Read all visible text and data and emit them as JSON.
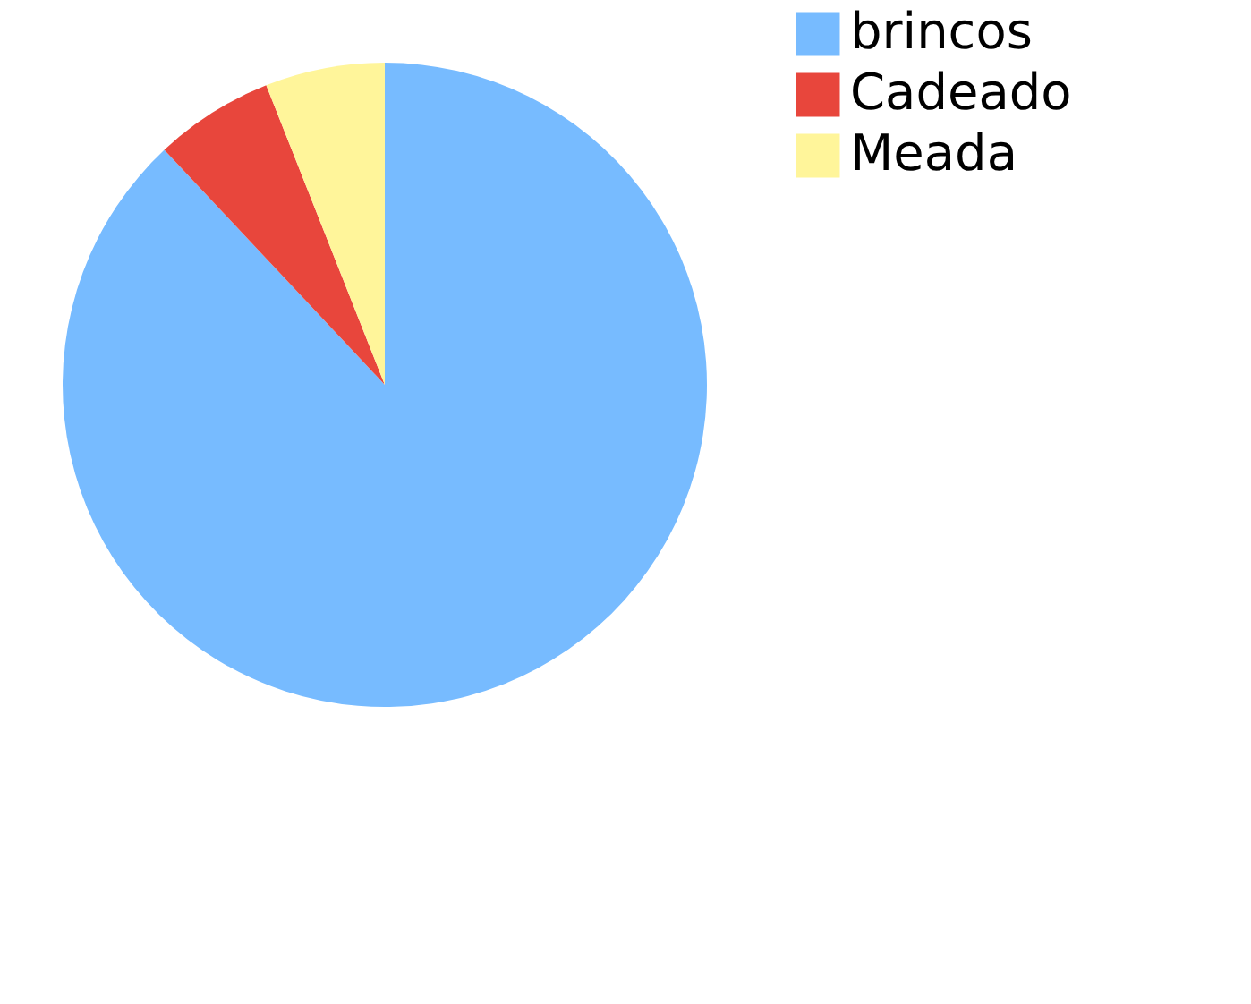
{
  "chart_data": {
    "type": "pie",
    "categories": [
      "brincos",
      "Cadeado",
      "Meada"
    ],
    "values": [
      88,
      6,
      6
    ],
    "colors": [
      "#77bbff",
      "#e8463c",
      "#fff59a"
    ],
    "legend": "right"
  }
}
